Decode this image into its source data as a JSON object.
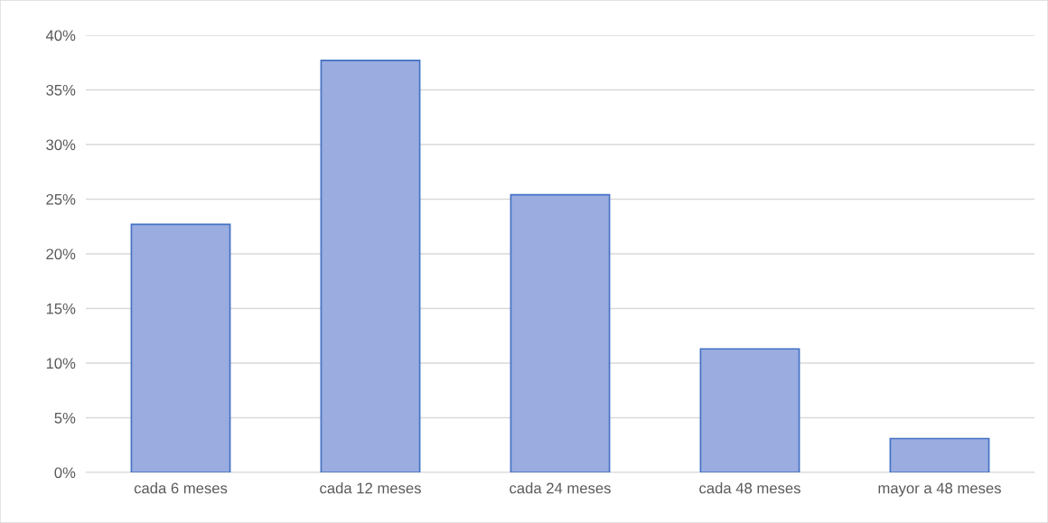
{
  "chart_data": {
    "type": "bar",
    "categories": [
      "cada 6 meses",
      "cada 12 meses",
      "cada 24 meses",
      "cada 48 meses",
      "mayor a 48 meses"
    ],
    "values": [
      22.7,
      37.7,
      25.4,
      11.3,
      3.1
    ],
    "color": "#9aace0",
    "ylim": [
      0,
      40
    ],
    "yticks": [
      {
        "value": 0,
        "label": "0%"
      },
      {
        "value": 5,
        "label": "5%"
      },
      {
        "value": 10,
        "label": "10%"
      },
      {
        "value": 15,
        "label": "15%"
      },
      {
        "value": 20,
        "label": "20%"
      },
      {
        "value": 25,
        "label": "25%"
      },
      {
        "value": 30,
        "label": "30%"
      },
      {
        "value": 35,
        "label": "35%"
      },
      {
        "value": 40,
        "label": "40%"
      }
    ],
    "grid": "y"
  }
}
